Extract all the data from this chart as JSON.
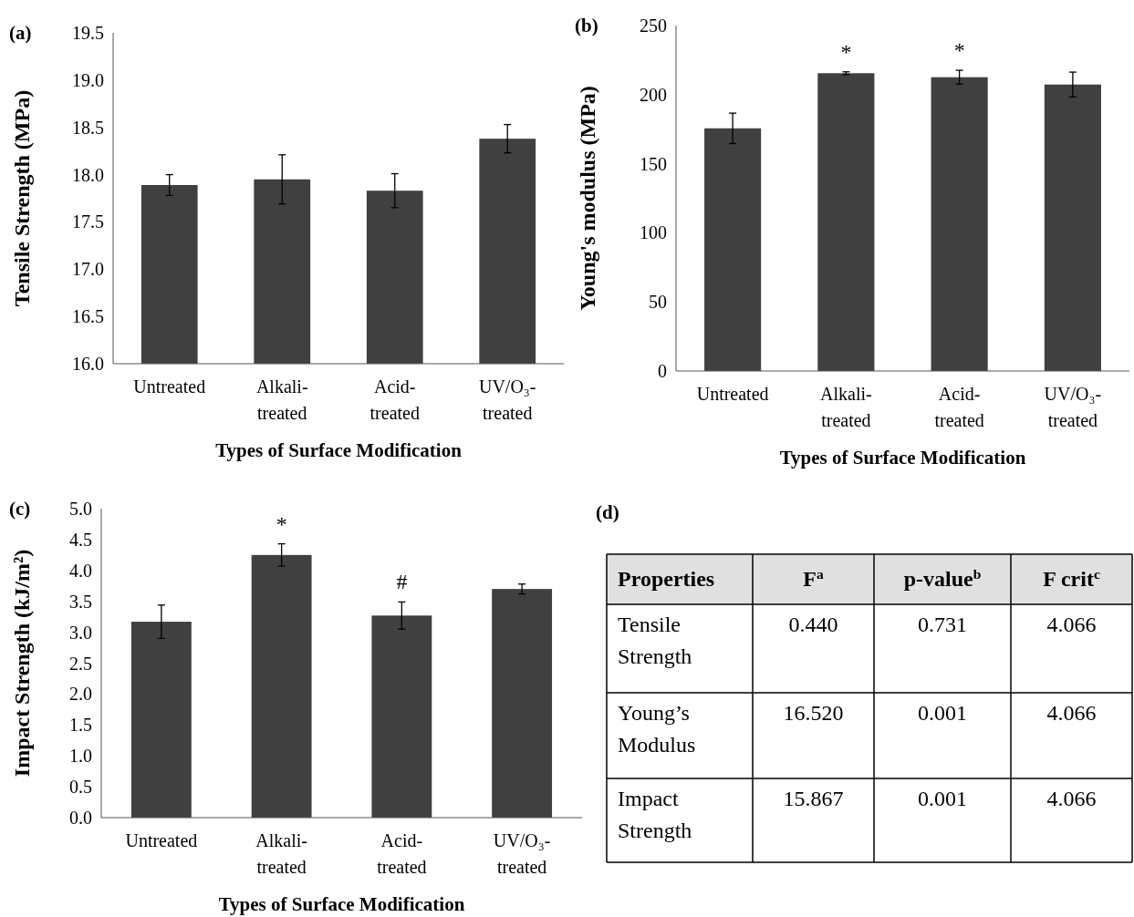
{
  "chart_data": [
    {
      "type": "bar",
      "title": "(a)",
      "xlabel": "Types of Surface Modification",
      "ylabel": "Tensile Strength (MPa)",
      "categories": [
        "Untreated",
        "Alkali-treated",
        "Acid-treated",
        "UV/O₃-treated"
      ],
      "values": [
        17.89,
        17.95,
        17.83,
        18.38
      ],
      "errors": [
        0.11,
        0.26,
        0.18,
        0.15
      ],
      "color": "#404040",
      "ylim": [
        16,
        19.5
      ],
      "yticks": [
        {
          "value": 16,
          "label": "16.0"
        },
        {
          "value": 16.5,
          "label": "16.5"
        },
        {
          "value": 17,
          "label": "17.0"
        },
        {
          "value": 17.5,
          "label": "17.5"
        },
        {
          "value": 18,
          "label": "18.0"
        },
        {
          "value": 18.5,
          "label": "18.5"
        },
        {
          "value": 19,
          "label": "19.0"
        },
        {
          "value": 19.5,
          "label": "19.5"
        }
      ]
    },
    {
      "type": "bar",
      "title": "(b)",
      "xlabel": "Types of Surface Modification",
      "ylabel": "Young's modulus (MPa)",
      "categories": [
        "Untreated",
        "Alkali-treated",
        "Acid-treated",
        "UV/O₃-treated"
      ],
      "values": [
        175.6,
        215.5,
        212.6,
        207.3
      ],
      "errors": [
        11,
        1,
        5,
        9
      ],
      "value_labels": [
        null,
        "*",
        "*",
        null
      ],
      "color": "#404040",
      "ylim": [
        0,
        250
      ],
      "yticks": [
        0,
        50,
        100,
        150,
        200,
        250
      ]
    },
    {
      "type": "bar",
      "title": "(c)",
      "xlabel": "Types of Surface Modification",
      "ylabel": "Impact Strength (kJ/m²)",
      "categories": [
        "Untreated",
        "Alkali-treated",
        "Acid-treated",
        "UV/O₃-treated"
      ],
      "values": [
        3.17,
        4.25,
        3.27,
        3.7
      ],
      "errors": [
        0.27,
        0.18,
        0.22,
        0.08
      ],
      "color": "#404040",
      "ylim": [
        0,
        5
      ],
      "yticks": [
        {
          "value": 0,
          "label": "0.0"
        },
        {
          "value": 0.5,
          "label": "0.5"
        },
        {
          "value": 1,
          "label": "1.0"
        },
        {
          "value": 1.5,
          "label": "1.5"
        },
        {
          "value": 2,
          "label": "2.0"
        },
        {
          "value": 2.5,
          "label": "2.5"
        },
        {
          "value": 3,
          "label": "3.0"
        },
        {
          "value": 3.5,
          "label": "3.5"
        },
        {
          "value": 4,
          "label": "4.0"
        },
        {
          "value": 4.5,
          "label": "4.5"
        },
        {
          "value": 5,
          "label": "5.0"
        }
      ],
      "value_labels": [
        null,
        "*",
        "#",
        null
      ]
    },
    {
      "type": "other",
      "title": "(d)",
      "annotations": [
        "Properties",
        "F$^{a}$",
        "p-value$^{b}$",
        "F crit$^{c}$",
        "Tensile Strength",
        "0.440",
        "0.731",
        "4.066",
        "Young’s Modulus",
        "16.520",
        "0.001",
        "4.066",
        "Impact Strength",
        "15.867",
        "0.001",
        "4.066"
      ]
    }
  ]
}
